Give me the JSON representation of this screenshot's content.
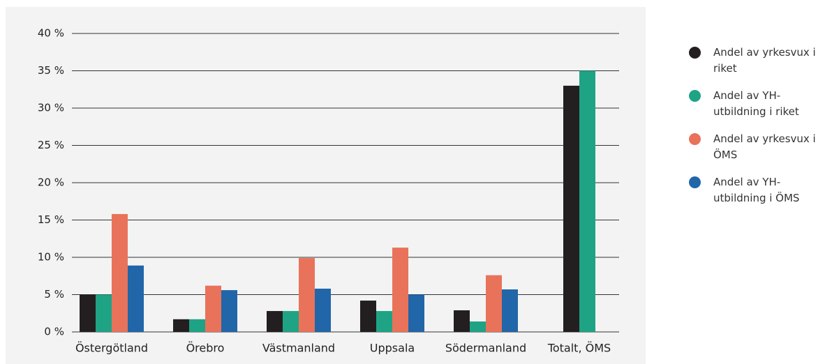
{
  "chart_data": {
    "type": "bar",
    "categories": [
      "Östergötland",
      "Örebro",
      "Västmanland",
      "Uppsala",
      "Södermanland",
      "Totalt, ÖMS"
    ],
    "series": [
      {
        "name": "Andel av yrkesvux i riket",
        "color": "#231f20",
        "values": [
          5,
          1.7,
          2.8,
          4.2,
          2.9,
          33
        ]
      },
      {
        "name": "Andel av YH-utbildning i riket",
        "color": "#1fa385",
        "values": [
          5,
          1.7,
          2.8,
          2.8,
          1.4,
          35
        ]
      },
      {
        "name": "Andel av yrkesvux i ÖMS",
        "color": "#e8735a",
        "values": [
          15.8,
          6.2,
          9.9,
          11.3,
          7.6,
          null
        ]
      },
      {
        "name": "Andel av YH-utbildning i ÖMS",
        "color": "#2166a8",
        "values": [
          8.9,
          5.6,
          5.8,
          5.0,
          5.7,
          null
        ]
      }
    ],
    "ylim": [
      0,
      40
    ],
    "yticks": [
      {
        "value": 0,
        "label": "0 %"
      },
      {
        "value": 5,
        "label": "5 %"
      },
      {
        "value": 10,
        "label": "10 %"
      },
      {
        "value": 15,
        "label": "15 %"
      },
      {
        "value": 20,
        "label": "20 %"
      },
      {
        "value": 25,
        "label": "25 %"
      },
      {
        "value": 30,
        "label": "30 %"
      },
      {
        "value": 35,
        "label": "35 %"
      },
      {
        "value": 40,
        "label": "40 %"
      }
    ],
    "grid": true,
    "legend": "right"
  }
}
